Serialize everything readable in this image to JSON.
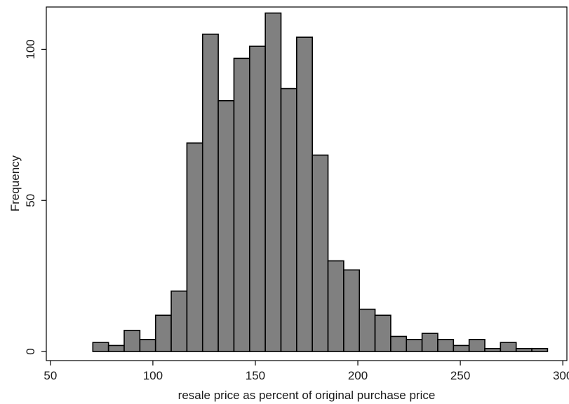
{
  "chart_data": {
    "type": "bar",
    "subtype": "histogram",
    "title": "",
    "xlabel": "resale price as percent of original purchase price",
    "ylabel": "Frequency",
    "xlim": [
      48,
      302
    ],
    "ylim": [
      -3,
      114
    ],
    "x_ticks": [
      50,
      100,
      150,
      200,
      250,
      300
    ],
    "y_ticks": [
      0,
      50,
      100
    ],
    "grid": false,
    "legend": "none",
    "bin_start": 70.7,
    "bin_width": 7.65,
    "values": [
      3,
      2,
      7,
      4,
      12,
      20,
      69,
      105,
      83,
      97,
      101,
      112,
      87,
      104,
      65,
      30,
      27,
      14,
      12,
      5,
      4,
      6,
      4,
      2,
      4,
      1,
      3,
      1,
      1
    ],
    "colors": {
      "bar_fill": "#808080",
      "bar_edge": "#000000",
      "axis": "#000000",
      "text": "#1a1a1a"
    }
  }
}
